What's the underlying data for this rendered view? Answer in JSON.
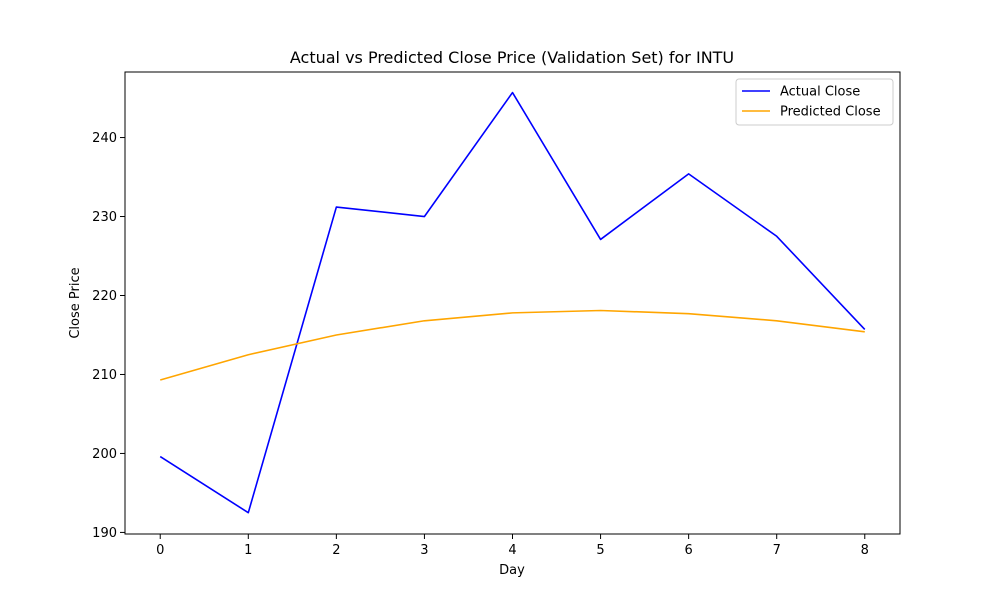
{
  "chart_data": {
    "type": "line",
    "title": "Actual vs Predicted Close Price (Validation Set) for INTU",
    "xlabel": "Day",
    "ylabel": "Close Price",
    "x": [
      0,
      1,
      2,
      3,
      4,
      5,
      6,
      7,
      8
    ],
    "x_ticks": [
      "0",
      "1",
      "2",
      "3",
      "4",
      "5",
      "6",
      "7",
      "8"
    ],
    "y_ticks": [
      "190",
      "200",
      "210",
      "220",
      "230",
      "240"
    ],
    "xlim": [
      -0.4,
      8.4
    ],
    "ylim": [
      189.8,
      248.3
    ],
    "grid": false,
    "legend_position": "top-right",
    "series": [
      {
        "name": "Actual Close",
        "color": "#0000ff",
        "values": [
          199.6,
          192.5,
          231.2,
          230.0,
          245.7,
          227.1,
          235.4,
          227.5,
          215.7
        ]
      },
      {
        "name": "Predicted Close",
        "color": "#ffa500",
        "values": [
          209.3,
          212.5,
          215.0,
          216.8,
          217.8,
          218.1,
          217.7,
          216.8,
          215.4
        ]
      }
    ]
  }
}
